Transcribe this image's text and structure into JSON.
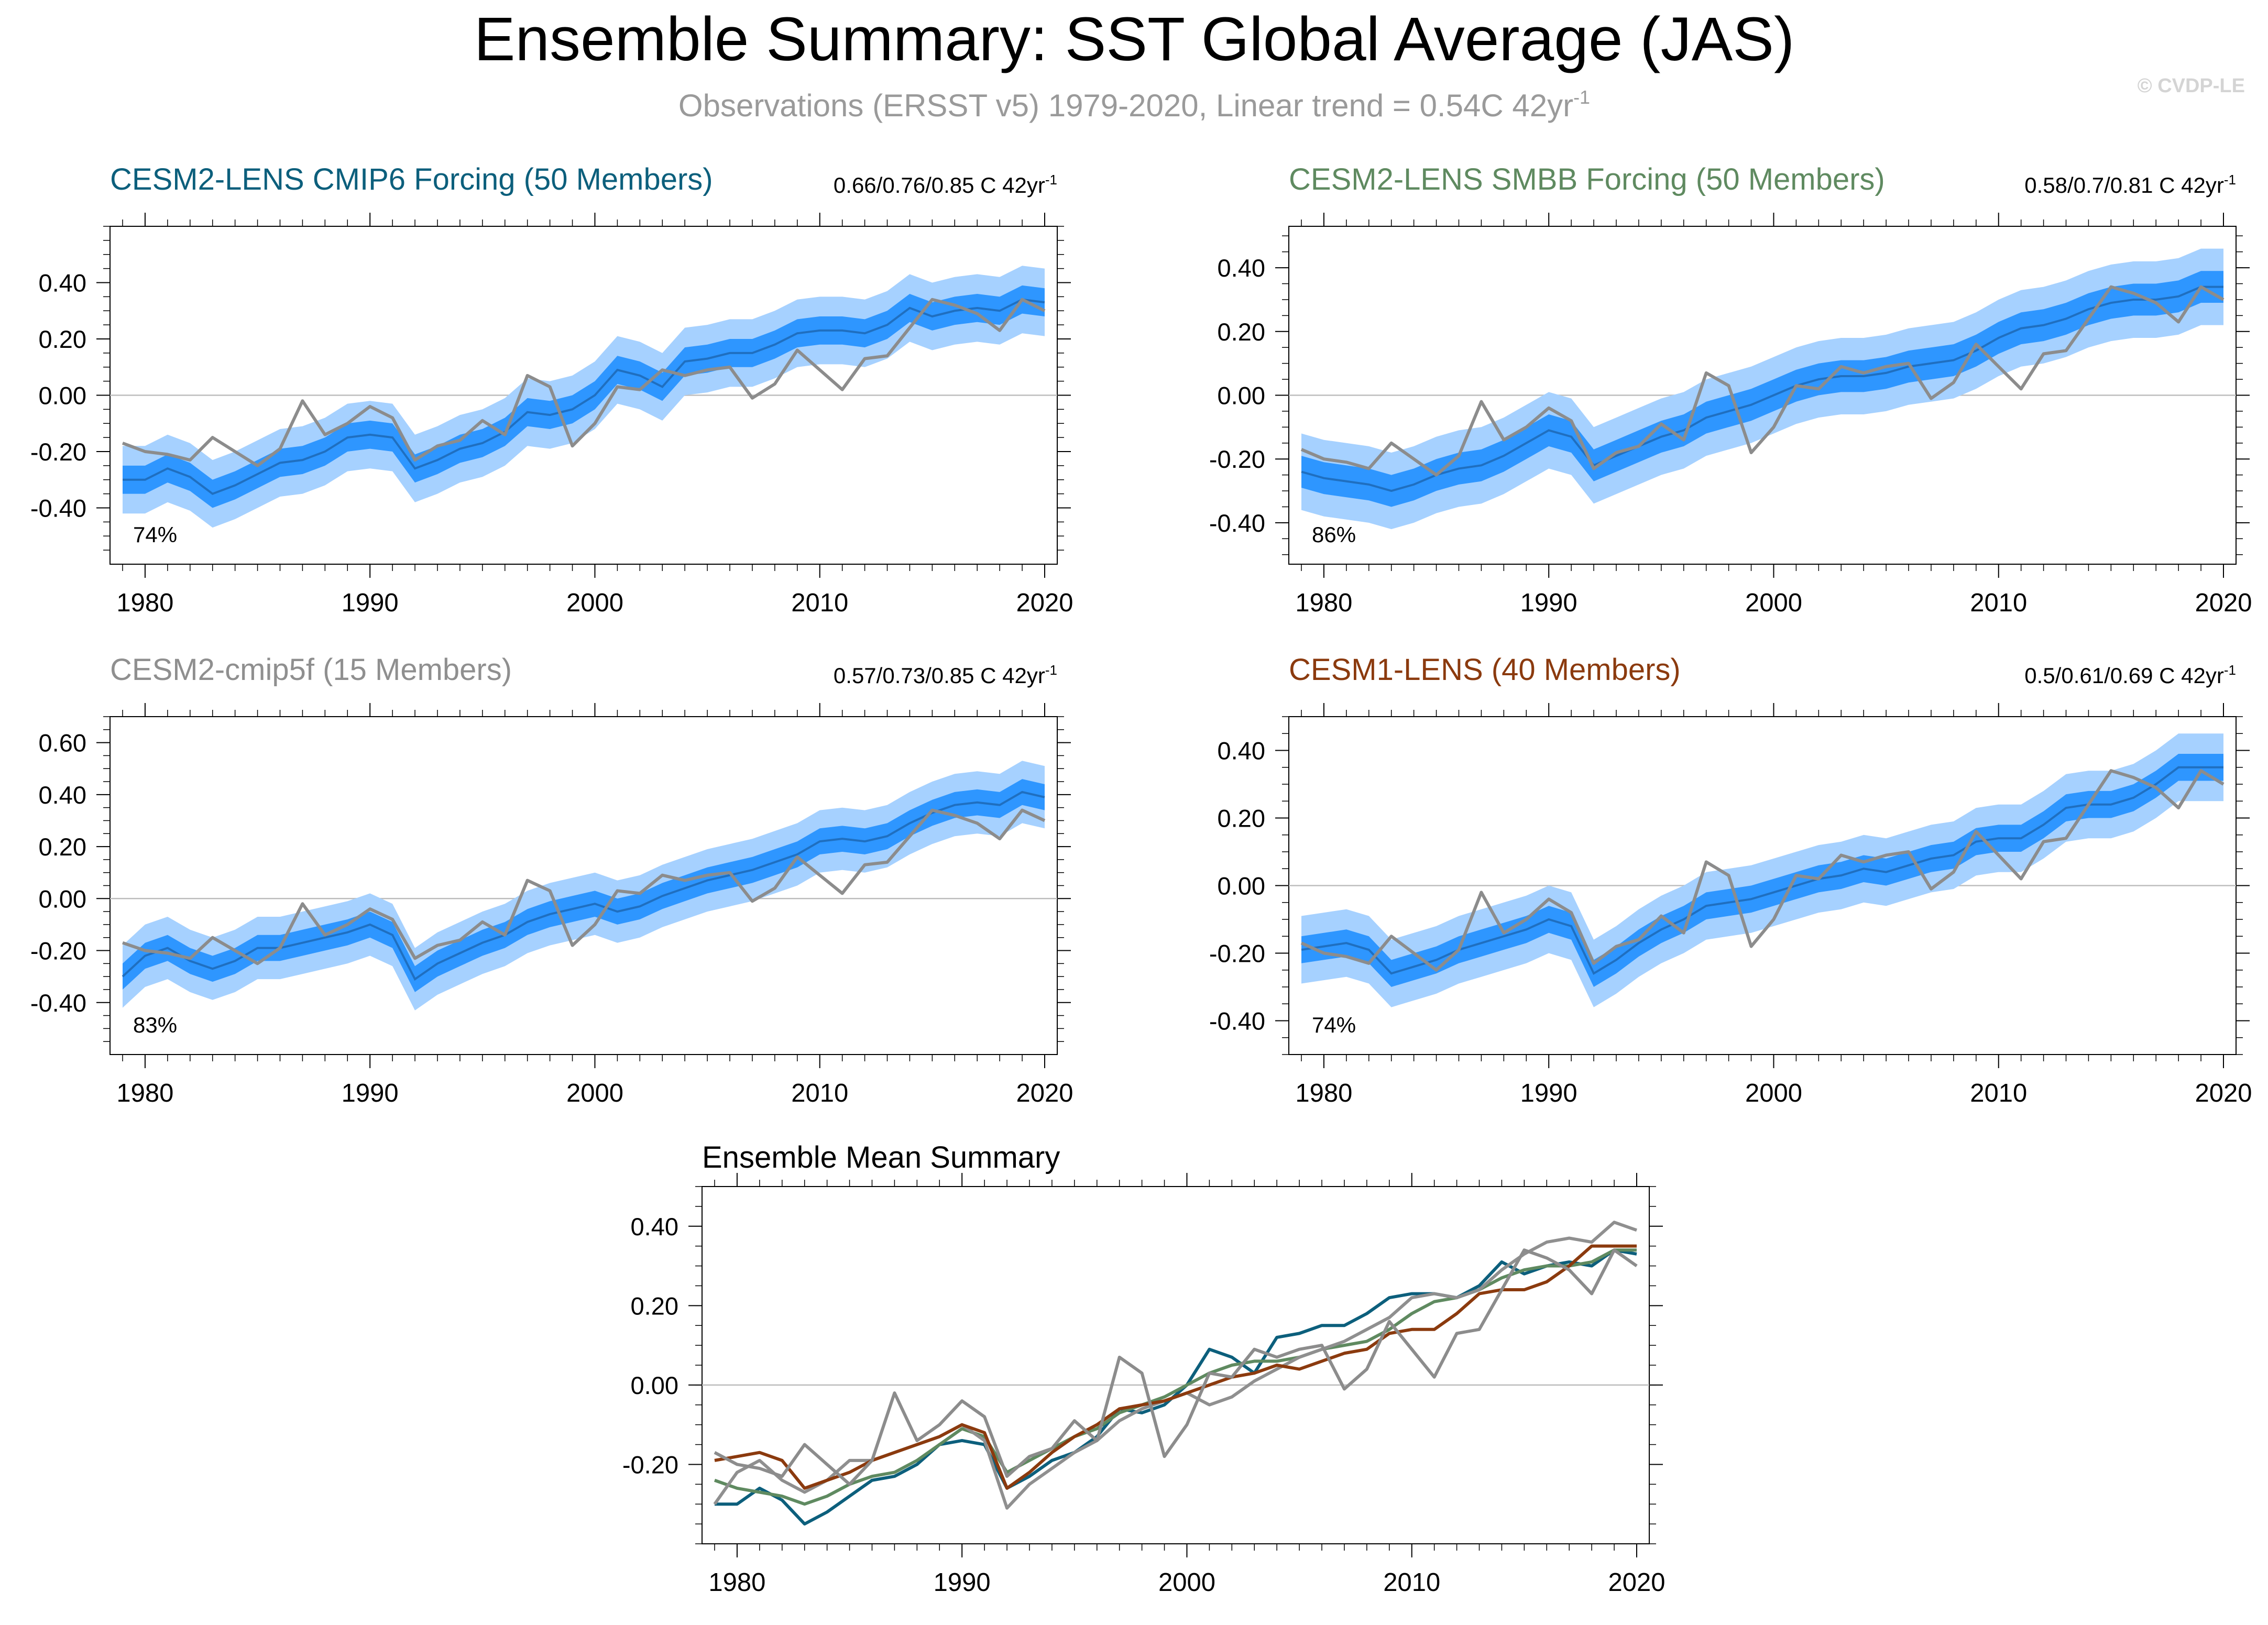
{
  "header": {
    "title": "Ensemble Summary: SST Global Average (JAS)",
    "subtitle": "Observations (ERSST v5) 1979-2020, Linear trend = 0.54C 42yr",
    "subtitle_sup": "-1",
    "copyright": "© CVDP-LE"
  },
  "colors": {
    "outer_band": "#a6d1ff",
    "inner_band": "#2e96ff",
    "ens_mean_line": "#1f6fc0",
    "obs_line": "#8c8c8c",
    "cmip6": "#0c5f7c",
    "smbb": "#5f8a60",
    "cmip5f": "#8f8f8f",
    "cesm1": "#8b3a0e"
  },
  "obs_series": [
    -0.17,
    -0.2,
    -0.21,
    -0.23,
    -0.15,
    -0.2,
    -0.25,
    -0.19,
    -0.02,
    -0.14,
    -0.1,
    -0.04,
    -0.08,
    -0.23,
    -0.18,
    -0.16,
    -0.09,
    -0.14,
    0.07,
    0.03,
    -0.18,
    -0.1,
    0.03,
    0.02,
    0.09,
    0.07,
    0.09,
    0.1,
    -0.01,
    0.04,
    0.16,
    0.09,
    0.02,
    0.13,
    0.14,
    0.24,
    0.34,
    0.32,
    0.29,
    0.23,
    0.34,
    0.3
  ],
  "chart_data": [
    {
      "type": "line",
      "title": "CESM2-LENS CMIP6 Forcing (50 Members)",
      "trend_label": "0.66/0.76/0.85 C 42yr",
      "trend_sup": "-1",
      "percent_label": "74%",
      "x_start": 1979,
      "xticks": [
        1980,
        1990,
        2000,
        2010,
        2020
      ],
      "ylim": [
        -0.6,
        0.6
      ],
      "yticks": [
        -0.4,
        -0.2,
        0.0,
        0.2,
        0.4
      ],
      "ytick_labels": [
        "-0.40",
        "-0.20",
        "0.00",
        "0.20",
        "0.40"
      ],
      "mean": [
        -0.3,
        -0.3,
        -0.26,
        -0.29,
        -0.35,
        -0.32,
        -0.28,
        -0.24,
        -0.23,
        -0.2,
        -0.15,
        -0.14,
        -0.15,
        -0.26,
        -0.23,
        -0.19,
        -0.17,
        -0.13,
        -0.06,
        -0.07,
        -0.05,
        0.0,
        0.09,
        0.07,
        0.03,
        0.12,
        0.13,
        0.15,
        0.15,
        0.18,
        0.22,
        0.23,
        0.23,
        0.22,
        0.25,
        0.31,
        0.28,
        0.3,
        0.31,
        0.3,
        0.34,
        0.33
      ],
      "inner_half_width": 0.05,
      "outer_half_width": 0.12,
      "series": [
        {
          "name": "Ensemble mean",
          "color_key": "ens_mean_line"
        },
        {
          "name": "Observations (ERSST v5)",
          "color_key": "obs_line"
        }
      ]
    },
    {
      "type": "line",
      "title": "CESM2-LENS SMBB Forcing (50 Members)",
      "trend_label": "0.58/0.7/0.81 C 42yr",
      "trend_sup": "-1",
      "percent_label": "86%",
      "x_start": 1979,
      "xticks": [
        1980,
        1990,
        2000,
        2010,
        2020
      ],
      "ylim": [
        -0.53,
        0.53
      ],
      "yticks": [
        -0.4,
        -0.2,
        0.0,
        0.2,
        0.4
      ],
      "ytick_labels": [
        "-0.40",
        "-0.20",
        "0.00",
        "0.20",
        "0.40"
      ],
      "mean": [
        -0.24,
        -0.26,
        -0.27,
        -0.28,
        -0.3,
        -0.28,
        -0.25,
        -0.23,
        -0.22,
        -0.19,
        -0.15,
        -0.11,
        -0.13,
        -0.22,
        -0.19,
        -0.16,
        -0.13,
        -0.11,
        -0.07,
        -0.05,
        -0.03,
        0.0,
        0.03,
        0.05,
        0.06,
        0.06,
        0.07,
        0.09,
        0.1,
        0.11,
        0.14,
        0.18,
        0.21,
        0.22,
        0.24,
        0.27,
        0.29,
        0.3,
        0.3,
        0.31,
        0.34,
        0.34
      ],
      "inner_half_width": 0.05,
      "outer_half_width": 0.12,
      "series": [
        {
          "name": "Ensemble mean",
          "color_key": "ens_mean_line"
        },
        {
          "name": "Observations (ERSST v5)",
          "color_key": "obs_line"
        }
      ]
    },
    {
      "type": "line",
      "title": "CESM2-cmip5f (15 Members)",
      "trend_label": "0.57/0.73/0.85 C 42yr",
      "trend_sup": "-1",
      "percent_label": "83%",
      "x_start": 1979,
      "xticks": [
        1980,
        1990,
        2000,
        2010,
        2020
      ],
      "ylim": [
        -0.6,
        0.7
      ],
      "yticks": [
        -0.4,
        -0.2,
        0.0,
        0.2,
        0.4,
        0.6
      ],
      "ytick_labels": [
        "-0.40",
        "-0.20",
        "0.00",
        "0.20",
        "0.40",
        "0.60"
      ],
      "mean": [
        -0.3,
        -0.22,
        -0.19,
        -0.24,
        -0.27,
        -0.24,
        -0.19,
        -0.19,
        -0.17,
        -0.15,
        -0.13,
        -0.1,
        -0.14,
        -0.31,
        -0.25,
        -0.21,
        -0.17,
        -0.14,
        -0.09,
        -0.06,
        -0.04,
        -0.02,
        -0.05,
        -0.03,
        0.01,
        0.04,
        0.07,
        0.09,
        0.11,
        0.14,
        0.17,
        0.22,
        0.23,
        0.22,
        0.24,
        0.29,
        0.33,
        0.36,
        0.37,
        0.36,
        0.41,
        0.39
      ],
      "inner_half_width": 0.05,
      "outer_half_width": 0.12,
      "series": [
        {
          "name": "Ensemble mean",
          "color_key": "ens_mean_line"
        },
        {
          "name": "Observations (ERSST v5)",
          "color_key": "obs_line"
        }
      ]
    },
    {
      "type": "line",
      "title": "CESM1-LENS (40 Members)",
      "trend_label": "0.5/0.61/0.69 C 42yr",
      "trend_sup": "-1",
      "percent_label": "74%",
      "x_start": 1979,
      "xticks": [
        1980,
        1990,
        2000,
        2010,
        2020
      ],
      "ylim": [
        -0.5,
        0.5
      ],
      "yticks": [
        -0.4,
        -0.2,
        0.0,
        0.2,
        0.4
      ],
      "ytick_labels": [
        "-0.40",
        "-0.20",
        "0.00",
        "0.20",
        "0.40"
      ],
      "mean": [
        -0.19,
        -0.18,
        -0.17,
        -0.19,
        -0.26,
        -0.24,
        -0.22,
        -0.19,
        -0.17,
        -0.15,
        -0.13,
        -0.1,
        -0.12,
        -0.26,
        -0.22,
        -0.17,
        -0.13,
        -0.1,
        -0.06,
        -0.05,
        -0.04,
        -0.02,
        0.0,
        0.02,
        0.03,
        0.05,
        0.04,
        0.06,
        0.08,
        0.09,
        0.13,
        0.14,
        0.14,
        0.18,
        0.23,
        0.24,
        0.24,
        0.26,
        0.3,
        0.35,
        0.35,
        0.35
      ],
      "inner_half_width": 0.04,
      "outer_half_width": 0.1,
      "series": [
        {
          "name": "Ensemble mean",
          "color_key": "ens_mean_line"
        },
        {
          "name": "Observations (ERSST v5)",
          "color_key": "obs_line"
        }
      ]
    },
    {
      "type": "line",
      "title": "Ensemble Mean Summary",
      "x_start": 1979,
      "xticks": [
        1980,
        1990,
        2000,
        2010,
        2020
      ],
      "ylim": [
        -0.4,
        0.5
      ],
      "yticks": [
        -0.2,
        0.0,
        0.2,
        0.4
      ],
      "ytick_labels": [
        "-0.20",
        "0.00",
        "0.20",
        "0.40"
      ],
      "series": [
        {
          "name": "CESM2-LENS CMIP6 Forcing",
          "color_key": "cmip6",
          "source_panel": 0
        },
        {
          "name": "CESM2-LENS SMBB Forcing",
          "color_key": "smbb",
          "source_panel": 1
        },
        {
          "name": "CESM2-cmip5f",
          "color_key": "cmip5f",
          "source_panel": 2
        },
        {
          "name": "CESM1-LENS",
          "color_key": "cesm1",
          "source_panel": 3
        },
        {
          "name": "Observations (ERSST v5)",
          "color_key": "obs_line",
          "source": "obs"
        }
      ]
    }
  ]
}
